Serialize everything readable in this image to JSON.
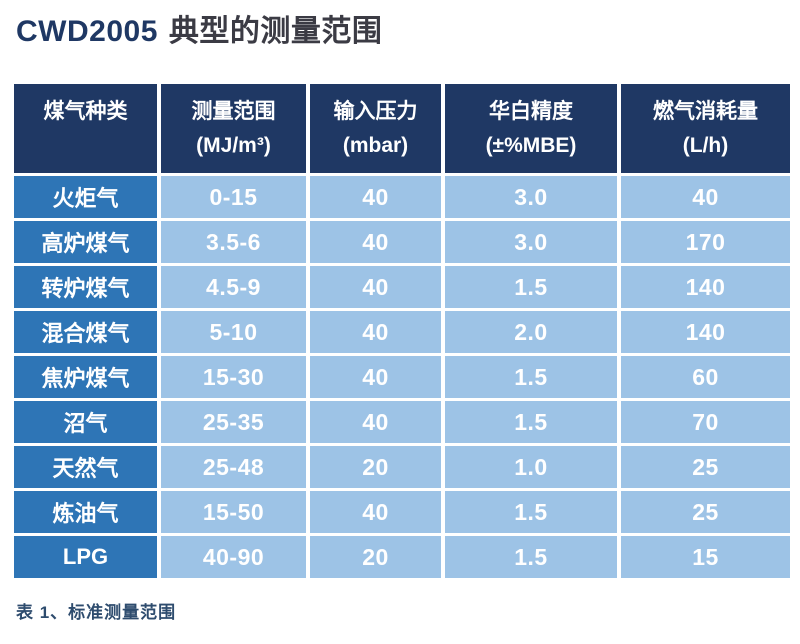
{
  "title": {
    "model": "CWD2005",
    "suffix": "典型的测量范围"
  },
  "table": {
    "columns": [
      {
        "label": "煤气种类",
        "unit": ""
      },
      {
        "label": "测量范围",
        "unit": "(MJ/m³)"
      },
      {
        "label": "输入压力",
        "unit": "(mbar)"
      },
      {
        "label": "华白精度",
        "unit": "(±%MBE)"
      },
      {
        "label": "燃气消耗量",
        "unit": "(L/h)"
      }
    ],
    "rows": [
      {
        "gas": "火炬气",
        "range": "0-15",
        "pressure": "40",
        "accuracy": "3.0",
        "consumption": "40"
      },
      {
        "gas": "高炉煤气",
        "range": "3.5-6",
        "pressure": "40",
        "accuracy": "3.0",
        "consumption": "170"
      },
      {
        "gas": "转炉煤气",
        "range": "4.5-9",
        "pressure": "40",
        "accuracy": "1.5",
        "consumption": "140"
      },
      {
        "gas": "混合煤气",
        "range": "5-10",
        "pressure": "40",
        "accuracy": "2.0",
        "consumption": "140"
      },
      {
        "gas": "焦炉煤气",
        "range": "15-30",
        "pressure": "40",
        "accuracy": "1.5",
        "consumption": "60"
      },
      {
        "gas": "沼气",
        "range": "25-35",
        "pressure": "40",
        "accuracy": "1.5",
        "consumption": "70"
      },
      {
        "gas": "天然气",
        "range": "25-48",
        "pressure": "20",
        "accuracy": "1.0",
        "consumption": "25"
      },
      {
        "gas": "炼油气",
        "range": "15-50",
        "pressure": "40",
        "accuracy": "1.5",
        "consumption": "25"
      },
      {
        "gas": "LPG",
        "range": "40-90",
        "pressure": "20",
        "accuracy": "1.5",
        "consumption": "15"
      }
    ]
  },
  "caption": "表 1、标准测量范围",
  "colors": {
    "header_bg": "#1F3864",
    "gas_column_bg": "#2E75B6",
    "data_cell_bg": "#9DC3E6",
    "table_text": "#FFFFFF",
    "title_model": "#1F3864",
    "title_text": "#3B3B44",
    "caption_text": "#2E4C6E"
  }
}
